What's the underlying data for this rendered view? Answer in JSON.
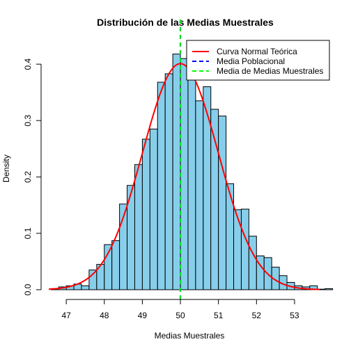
{
  "chart_data": {
    "type": "bar",
    "title": "Distribución de las Medias Muestrales",
    "xlabel": "Medias Muestrales",
    "ylabel": "Density",
    "xlim": [
      46.54,
      53.66
    ],
    "ylim": [
      0,
      0.415
    ],
    "x_ticks": [
      47,
      48,
      49,
      50,
      51,
      52,
      53
    ],
    "y_ticks": [
      0.0,
      0.1,
      0.2,
      0.3,
      0.4
    ],
    "y_tick_labels": [
      "0.0",
      "0.1",
      "0.2",
      "0.3",
      "0.4"
    ],
    "histogram": {
      "bin_width": 0.2,
      "bin_start": 46.6,
      "densities": [
        0.002,
        0.005,
        0.007,
        0.01,
        0.007,
        0.035,
        0.045,
        0.08,
        0.087,
        0.152,
        0.185,
        0.222,
        0.267,
        0.285,
        0.368,
        0.383,
        0.418,
        0.41,
        0.387,
        0.335,
        0.36,
        0.32,
        0.308,
        0.188,
        0.142,
        0.143,
        0.095,
        0.06,
        0.057,
        0.04,
        0.025,
        0.013,
        0.007,
        0.005,
        0.007,
        0.001,
        0.002
      ],
      "fill_color": "#87CEEB",
      "border_color": "#000000"
    },
    "normal_curve": {
      "mean": 50.0,
      "sd": 0.995,
      "color": "#FF0000",
      "name": "Curva Normal Teórica"
    },
    "vlines": [
      {
        "name": "Media Poblacional",
        "x": 50.0,
        "color": "#0000FF",
        "style": "dashed"
      },
      {
        "name": "Media de Medias Muestrales",
        "x": 49.995,
        "color": "#00FF00",
        "style": "dashed"
      }
    ],
    "legend": {
      "position": "top-right",
      "entries": [
        {
          "label": "Curva Normal Teórica",
          "color": "#FF0000",
          "style": "solid"
        },
        {
          "label": "Media Poblacional",
          "color": "#0000FF",
          "style": "dashed"
        },
        {
          "label": "Media de Medias Muestrales",
          "color": "#00FF00",
          "style": "dashed"
        }
      ]
    },
    "grid": false
  }
}
